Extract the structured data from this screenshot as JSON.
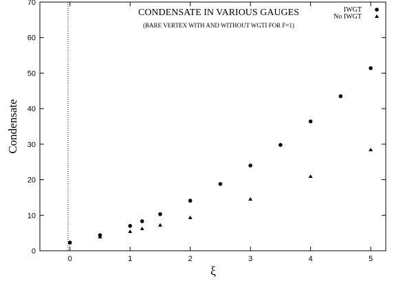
{
  "chart_data": {
    "type": "scatter",
    "title": "CONDENSATE IN VARIOUS GAUGES",
    "subtitle": "(BARE VERTEX WITH AND WITHOUT WGTI FOR F=1)",
    "xlabel": "ξ",
    "ylabel": "Condensate",
    "xlim": [
      -0.5,
      5.25
    ],
    "xticks": [
      0,
      1,
      2,
      3,
      4,
      5
    ],
    "ylim": [
      0,
      70
    ],
    "yticks": [
      0,
      10,
      20,
      30,
      40,
      50,
      60,
      70
    ],
    "legend": "upper right",
    "series": [
      {
        "name": "IWGT",
        "color": "#000000",
        "marker": "circle",
        "x": [
          0,
          0.5,
          1,
          1.2,
          1.5,
          2,
          2.5,
          3,
          3.5,
          4,
          4.5,
          5
        ],
        "values": [
          2.3,
          4.4,
          7.0,
          8.3,
          10.3,
          14.1,
          18.8,
          24.0,
          29.8,
          36.4,
          43.5,
          51.4
        ]
      },
      {
        "name": "No IWGT",
        "color": "#000000",
        "marker": "triangle",
        "x": [
          0.5,
          1,
          1.2,
          1.5,
          2,
          3,
          4,
          5
        ],
        "values": [
          3.9,
          5.4,
          6.2,
          7.2,
          9.3,
          14.5,
          20.9,
          28.4
        ]
      }
    ]
  }
}
